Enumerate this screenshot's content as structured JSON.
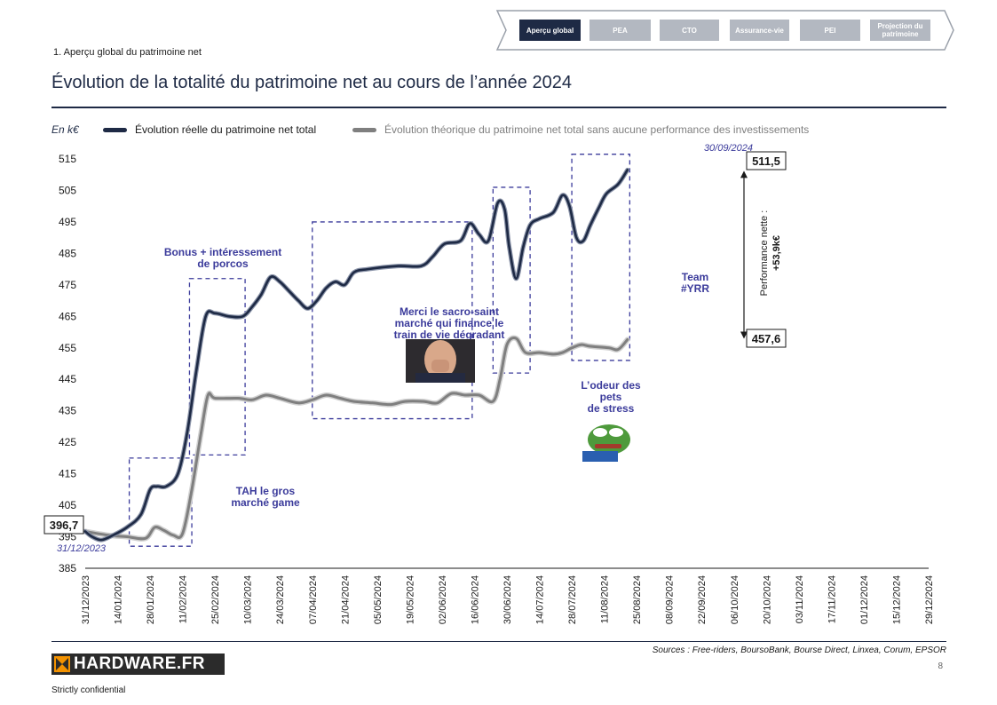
{
  "nav": {
    "tabs": [
      {
        "label": "Aperçu global",
        "active": true
      },
      {
        "label": "PEA",
        "active": false
      },
      {
        "label": "CTO",
        "active": false
      },
      {
        "label": "Assurance-vie",
        "active": false
      },
      {
        "label": "PEI",
        "active": false
      },
      {
        "label": "Projection du patrimoine",
        "active": false
      }
    ]
  },
  "section_label": "1. Aperçu global du patrimoine net",
  "title": "Évolution de la totalité du patrimoine net au cours de l’année 2024",
  "colors": {
    "actual": "#1e2a45",
    "theoretical": "#7f7f7f",
    "annotation": "#3b3b9b"
  },
  "chart_data": {
    "type": "line",
    "unit_label": "En k€",
    "ylim": [
      385,
      515
    ],
    "yticks": [
      385,
      395,
      405,
      415,
      425,
      435,
      445,
      455,
      465,
      475,
      485,
      495,
      505,
      515
    ],
    "x_tick_labels": [
      "31/12/2023",
      "14/01/2024",
      "28/01/2024",
      "11/02/2024",
      "25/02/2024",
      "10/03/2024",
      "24/03/2024",
      "07/04/2024",
      "21/04/2024",
      "05/05/2024",
      "19/05/2024",
      "02/06/2024",
      "16/06/2024",
      "30/06/2024",
      "14/07/2024",
      "28/07/2024",
      "11/08/2024",
      "25/08/2024",
      "08/09/2024",
      "22/09/2024",
      "06/10/2024",
      "20/10/2024",
      "03/11/2024",
      "17/11/2024",
      "01/12/2024",
      "15/12/2024",
      "29/12/2024"
    ],
    "x_range_days": [
      0,
      364
    ],
    "series": [
      {
        "name": "Évolution réelle du patrimoine net total",
        "points": [
          [
            0,
            396.7
          ],
          [
            3,
            395
          ],
          [
            7,
            394
          ],
          [
            12,
            395.5
          ],
          [
            18,
            398
          ],
          [
            24,
            402
          ],
          [
            28,
            410
          ],
          [
            31,
            411
          ],
          [
            35,
            411
          ],
          [
            40,
            415
          ],
          [
            44,
            428
          ],
          [
            48,
            448
          ],
          [
            52,
            465
          ],
          [
            56,
            466
          ],
          [
            62,
            465
          ],
          [
            68,
            465
          ],
          [
            72,
            468
          ],
          [
            76,
            472
          ],
          [
            80,
            477.5
          ],
          [
            84,
            476
          ],
          [
            88,
            473
          ],
          [
            92,
            470
          ],
          [
            96,
            467.5
          ],
          [
            100,
            470
          ],
          [
            104,
            474
          ],
          [
            108,
            476
          ],
          [
            112,
            475
          ],
          [
            116,
            479
          ],
          [
            122,
            480
          ],
          [
            135,
            481
          ],
          [
            145,
            481
          ],
          [
            150,
            484
          ],
          [
            155,
            488
          ],
          [
            162,
            489
          ],
          [
            166,
            494.5
          ],
          [
            170,
            491
          ],
          [
            174,
            489
          ],
          [
            178,
            501
          ],
          [
            181,
            499
          ],
          [
            183,
            487
          ],
          [
            186,
            477
          ],
          [
            189,
            487
          ],
          [
            192,
            494
          ],
          [
            196,
            496
          ],
          [
            202,
            498
          ],
          [
            206,
            503.5
          ],
          [
            209,
            500
          ],
          [
            212,
            490
          ],
          [
            215,
            489
          ],
          [
            218,
            494
          ],
          [
            222,
            500
          ],
          [
            225,
            504
          ],
          [
            230,
            507
          ],
          [
            234,
            511.5
          ]
        ]
      },
      {
        "name": "Évolution théorique du patrimoine net total sans aucune performance des investissements",
        "points": [
          [
            0,
            396.7
          ],
          [
            10,
            395.5
          ],
          [
            18,
            395
          ],
          [
            26,
            394.5
          ],
          [
            30,
            398
          ],
          [
            34,
            397
          ],
          [
            38,
            395.5
          ],
          [
            42,
            396
          ],
          [
            46,
            410
          ],
          [
            50,
            428
          ],
          [
            53,
            440
          ],
          [
            56,
            439
          ],
          [
            66,
            439
          ],
          [
            72,
            438.5
          ],
          [
            78,
            440
          ],
          [
            84,
            439
          ],
          [
            92,
            437.5
          ],
          [
            98,
            438.5
          ],
          [
            104,
            440
          ],
          [
            110,
            439
          ],
          [
            116,
            438
          ],
          [
            124,
            437.5
          ],
          [
            132,
            437
          ],
          [
            138,
            438
          ],
          [
            146,
            438
          ],
          [
            152,
            437.5
          ],
          [
            158,
            440.5
          ],
          [
            164,
            440
          ],
          [
            170,
            440
          ],
          [
            176,
            438
          ],
          [
            179,
            445
          ],
          [
            182,
            456
          ],
          [
            186,
            458
          ],
          [
            190,
            453.5
          ],
          [
            196,
            453.5
          ],
          [
            202,
            453
          ],
          [
            206,
            453.5
          ],
          [
            210,
            455
          ],
          [
            214,
            456
          ],
          [
            218,
            455.5
          ],
          [
            226,
            455
          ],
          [
            230,
            454.5
          ],
          [
            234,
            457.6
          ]
        ]
      }
    ],
    "value_labels": [
      {
        "text": "396,7",
        "x": 0,
        "y": 396.7
      },
      {
        "text": "511,5",
        "x": 234,
        "y": 511.5
      },
      {
        "text": "457,6",
        "x": 234,
        "y": 457.6
      }
    ],
    "date_annotations": [
      {
        "text": "31/12/2023",
        "x": 0
      },
      {
        "text": "30/09/2024",
        "x": 234
      }
    ],
    "performance_label": [
      "Performance nette :",
      "+53,9k€"
    ],
    "annotations": [
      {
        "text": [
          "Bonus + intéressement",
          "de porcos"
        ],
        "x0": 45,
        "x1": 69,
        "y0": 421,
        "y1": 477
      },
      {
        "text": [
          "TAH le gros",
          "marché game"
        ],
        "x0": 19,
        "x1": 46,
        "y0": 392,
        "y1": 420
      },
      {
        "text": [
          "Merci le sacro-saint",
          "marché qui finance le",
          "train de vie dégradant"
        ],
        "x0": 98,
        "x1": 167,
        "y0": 432.5,
        "y1": 495
      },
      {
        "text": [
          "L’odeur des",
          "pets",
          "de stress"
        ],
        "x0": 176,
        "x1": 192,
        "y0": 447,
        "y1": 506
      },
      {
        "text": [
          "Team",
          "#YRR"
        ],
        "x0": 210,
        "x1": 235,
        "y0": 451,
        "y1": 516.5
      }
    ],
    "grid": false
  },
  "sources": "Sources : Free-riders, BoursoBank, Bourse Direct, Linxea, Corum, EPSOR",
  "page_number": "8",
  "logo_text": "HARDWARE.FR",
  "confidential": "Strictly confidential"
}
